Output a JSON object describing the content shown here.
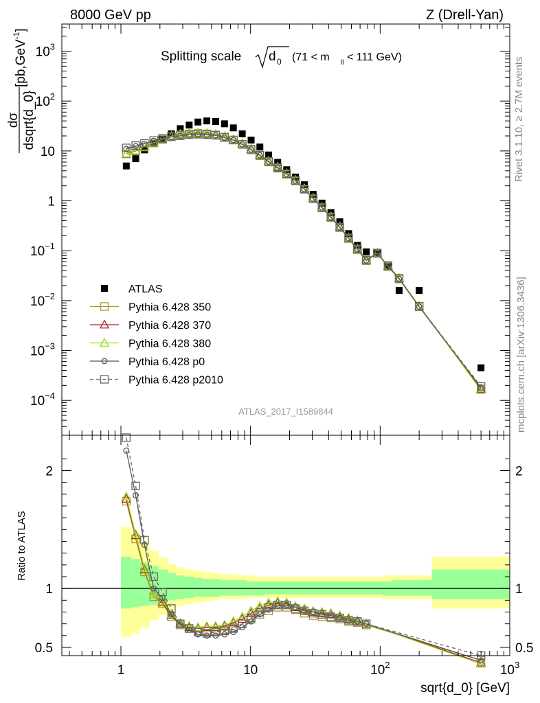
{
  "header": {
    "left": "8000 GeV pp",
    "right": "Z (Drell-Yan)"
  },
  "side_labels": {
    "rivet": "Rivet 3.1.10, ≥ 2.7M events",
    "mcplots": "mcplots.cern.ch [arXiv:1306.3436]"
  },
  "analysis_tag": "ATLAS_2017_I1589844",
  "chart_data": [
    {
      "type": "scatter",
      "panel": "main",
      "title_parts": {
        "lead": "Splitting scale",
        "symbol": "d",
        "subscript": "0",
        "range_open": "(71 < m",
        "range_sub": "ll",
        "range_close": " < 111 GeV)"
      },
      "ylabel_parts": {
        "num": "dσ",
        "den": "dsqrt{d_0}",
        "unit_open": " [pb,GeV",
        "unit_exp": "-1",
        "unit_close": "]"
      },
      "x_scale": "log",
      "y_scale": "log",
      "xlim": [
        0.35,
        1000
      ],
      "ylim": [
        2e-05,
        3500
      ],
      "x_ticks": [
        {
          "value": 1,
          "label": "1"
        },
        {
          "value": 10,
          "label": "10"
        },
        {
          "value": 100,
          "label": "10",
          "sup": "2"
        },
        {
          "value": 1000,
          "label": "10",
          "sup": "3"
        }
      ],
      "y_ticks": [
        {
          "value": 0.0001,
          "label": "10",
          "sup": "−4"
        },
        {
          "value": 0.001,
          "label": "10",
          "sup": "−3"
        },
        {
          "value": 0.01,
          "label": "10",
          "sup": "−2"
        },
        {
          "value": 0.1,
          "label": "10",
          "sup": "−1"
        },
        {
          "value": 1,
          "label": "1"
        },
        {
          "value": 10,
          "label": "10"
        },
        {
          "value": 100,
          "label": "10",
          "sup": "2"
        },
        {
          "value": 1000,
          "label": "10",
          "sup": "3"
        }
      ],
      "legend_position": "bottom-left",
      "series": [
        {
          "name": "ATLAS",
          "color": "#000000",
          "marker": "filled-square",
          "line": "none",
          "x": [
            1.1,
            1.3,
            1.52,
            1.79,
            2.09,
            2.45,
            2.87,
            3.36,
            3.93,
            4.6,
            5.38,
            6.3,
            7.37,
            8.63,
            10.1,
            11.8,
            13.8,
            16.2,
            19.0,
            22.2,
            26.0,
            30.4,
            35.6,
            41.7,
            48.8,
            57.1,
            66.8,
            78.2,
            95.0,
            115.0,
            140.0,
            200.0,
            600.0
          ],
          "y": [
            5.0,
            7.0,
            10.5,
            14.0,
            18.0,
            22.0,
            28.0,
            33.0,
            38.0,
            40.0,
            39.0,
            35.0,
            29.0,
            22.0,
            16.5,
            12.0,
            8.3,
            5.9,
            4.2,
            3.0,
            2.1,
            1.35,
            0.9,
            0.58,
            0.38,
            0.22,
            0.128,
            0.095,
            0.09,
            0.052,
            0.016,
            0.016,
            0.00045
          ]
        },
        {
          "name": "Pythia 6.428 350",
          "color": "#aa9933",
          "marker": "open-square",
          "line": "solid",
          "x": [
            1.1,
            1.3,
            1.52,
            1.79,
            2.09,
            2.45,
            2.87,
            3.36,
            3.93,
            4.6,
            5.38,
            6.3,
            7.37,
            8.63,
            10.1,
            11.8,
            13.8,
            16.2,
            19.0,
            22.2,
            26.0,
            30.4,
            35.6,
            41.7,
            48.8,
            57.1,
            66.8,
            78.2,
            95.0,
            115.0,
            140.0,
            200.0,
            600.0
          ],
          "y": [
            8.7,
            10.0,
            12.0,
            14.5,
            17.0,
            19.5,
            21.0,
            22.0,
            22.5,
            22.0,
            21.0,
            19.0,
            16.5,
            13.5,
            10.5,
            8.0,
            6.0,
            4.5,
            3.4,
            2.5,
            1.7,
            1.1,
            0.72,
            0.46,
            0.29,
            0.175,
            0.105,
            0.063,
            0.088,
            0.048,
            0.027,
            0.0075,
            0.00017
          ]
        },
        {
          "name": "Pythia 6.428 370",
          "color": "#aa2222",
          "marker": "open-triangle",
          "line": "solid",
          "x": [
            1.1,
            1.3,
            1.52,
            1.79,
            2.09,
            2.45,
            2.87,
            3.36,
            3.93,
            4.6,
            5.38,
            6.3,
            7.37,
            8.63,
            10.1,
            11.8,
            13.8,
            16.2,
            19.0,
            22.2,
            26.0,
            30.4,
            35.6,
            41.7,
            48.8,
            57.1,
            66.8,
            78.2,
            95.0,
            115.0,
            140.0,
            200.0,
            600.0
          ],
          "y": [
            8.8,
            10.1,
            12.1,
            14.6,
            17.2,
            19.8,
            21.5,
            22.5,
            23.0,
            22.5,
            21.5,
            19.5,
            17.0,
            14.0,
            10.8,
            8.3,
            6.2,
            4.7,
            3.5,
            2.6,
            1.75,
            1.13,
            0.74,
            0.48,
            0.3,
            0.18,
            0.108,
            0.065,
            0.09,
            0.049,
            0.028,
            0.0077,
            0.00017
          ]
        },
        {
          "name": "Pythia 6.428 380",
          "color": "#99dd22",
          "marker": "open-triangle",
          "line": "solid",
          "x": [
            1.1,
            1.3,
            1.52,
            1.79,
            2.09,
            2.45,
            2.87,
            3.36,
            3.93,
            4.6,
            5.38,
            6.3,
            7.37,
            8.63,
            10.1,
            11.8,
            13.8,
            16.2,
            19.0,
            22.2,
            26.0,
            30.4,
            35.6,
            41.7,
            48.8,
            57.1,
            66.8,
            78.2,
            95.0,
            115.0,
            140.0,
            200.0,
            600.0
          ],
          "y": [
            8.9,
            10.2,
            12.2,
            14.7,
            17.3,
            19.9,
            21.6,
            22.6,
            23.1,
            22.6,
            21.6,
            19.6,
            17.1,
            14.1,
            10.9,
            8.4,
            6.3,
            4.8,
            3.55,
            2.62,
            1.77,
            1.14,
            0.75,
            0.485,
            0.305,
            0.182,
            0.11,
            0.066,
            0.091,
            0.05,
            0.0285,
            0.0078,
            0.00016
          ]
        },
        {
          "name": "Pythia 6.428 p0",
          "color": "#555555",
          "marker": "open-circle",
          "line": "solid",
          "x": [
            1.1,
            1.3,
            1.52,
            1.79,
            2.09,
            2.45,
            2.87,
            3.36,
            3.93,
            4.6,
            5.38,
            6.3,
            7.37,
            8.63,
            10.1,
            11.8,
            13.8,
            16.2,
            19.0,
            22.2,
            26.0,
            30.4,
            35.6,
            41.7,
            48.8,
            57.1,
            66.8,
            78.2,
            95.0,
            115.0,
            140.0,
            200.0,
            600.0
          ],
          "y": [
            11.0,
            12.5,
            14.0,
            16.0,
            17.5,
            19.0,
            20.0,
            21.0,
            21.5,
            21.0,
            20.5,
            18.5,
            16.5,
            13.5,
            10.7,
            8.2,
            6.1,
            4.6,
            3.45,
            2.55,
            1.72,
            1.11,
            0.73,
            0.47,
            0.295,
            0.178,
            0.107,
            0.064,
            0.089,
            0.049,
            0.0275,
            0.0076,
            0.00018
          ]
        },
        {
          "name": "Pythia 6.428 p2010",
          "color": "#666666",
          "marker": "open-square",
          "line": "dashed",
          "x": [
            1.1,
            1.3,
            1.52,
            1.79,
            2.09,
            2.45,
            2.87,
            3.36,
            3.93,
            4.6,
            5.38,
            6.3,
            7.37,
            8.63,
            10.1,
            11.8,
            13.8,
            16.2,
            19.0,
            22.2,
            26.0,
            30.4,
            35.6,
            41.7,
            48.8,
            57.1,
            66.8,
            78.2,
            95.0,
            115.0,
            140.0,
            200.0,
            600.0
          ],
          "y": [
            11.5,
            12.8,
            14.2,
            16.2,
            17.8,
            19.2,
            20.2,
            21.1,
            21.6,
            21.2,
            20.6,
            18.6,
            16.6,
            13.6,
            10.8,
            8.25,
            6.15,
            4.65,
            3.48,
            2.57,
            1.73,
            1.12,
            0.735,
            0.475,
            0.298,
            0.18,
            0.108,
            0.065,
            0.09,
            0.05,
            0.028,
            0.0077,
            0.00019
          ]
        }
      ]
    },
    {
      "type": "line",
      "panel": "ratio",
      "ylabel": "Ratio to ATLAS",
      "xlabel": "sqrt{d_0} [GeV]",
      "x_scale": "log",
      "xlim": [
        0.35,
        1000
      ],
      "ylim": [
        0.43,
        2.3
      ],
      "y_ticks": [
        {
          "value": 0.5,
          "label": "0.5"
        },
        {
          "value": 1,
          "label": "1"
        },
        {
          "value": 2,
          "label": "2"
        }
      ],
      "reference_line": 1.0,
      "uncertainty_bands": {
        "edges": [
          1.0,
          1.2,
          1.4,
          1.65,
          1.95,
          2.3,
          2.65,
          3.1,
          3.65,
          4.25,
          5.0,
          5.8,
          6.85,
          8.0,
          9.3,
          10.9,
          12.8,
          15.0,
          17.5,
          20.5,
          24.0,
          28.0,
          33.0,
          38.5,
          45.0,
          52.5,
          61.5,
          72.0,
          85.0,
          105.0,
          125.0,
          160.0,
          250.0,
          1000.0
        ],
        "outer_hi": [
          1.52,
          1.47,
          1.4,
          1.32,
          1.26,
          1.21,
          1.18,
          1.16,
          1.15,
          1.14,
          1.13,
          1.12,
          1.12,
          1.11,
          1.11,
          1.1,
          1.1,
          1.1,
          1.1,
          1.1,
          1.1,
          1.1,
          1.1,
          1.1,
          1.1,
          1.1,
          1.1,
          1.1,
          1.1,
          1.11,
          1.11,
          1.11,
          1.27
        ],
        "outer_lo": [
          0.59,
          0.62,
          0.67,
          0.73,
          0.78,
          0.82,
          0.85,
          0.87,
          0.88,
          0.89,
          0.9,
          0.91,
          0.91,
          0.91,
          0.92,
          0.92,
          0.92,
          0.92,
          0.92,
          0.92,
          0.92,
          0.92,
          0.92,
          0.92,
          0.92,
          0.92,
          0.92,
          0.92,
          0.92,
          0.91,
          0.91,
          0.91,
          0.83
        ],
        "inner_hi": [
          1.27,
          1.25,
          1.22,
          1.19,
          1.16,
          1.13,
          1.11,
          1.1,
          1.09,
          1.08,
          1.08,
          1.07,
          1.07,
          1.07,
          1.06,
          1.06,
          1.06,
          1.06,
          1.06,
          1.06,
          1.06,
          1.06,
          1.06,
          1.06,
          1.06,
          1.06,
          1.06,
          1.06,
          1.06,
          1.06,
          1.07,
          1.07,
          1.16
        ],
        "inner_lo": [
          0.83,
          0.84,
          0.85,
          0.86,
          0.88,
          0.9,
          0.91,
          0.92,
          0.93,
          0.93,
          0.93,
          0.94,
          0.94,
          0.94,
          0.94,
          0.94,
          0.95,
          0.95,
          0.95,
          0.95,
          0.95,
          0.95,
          0.95,
          0.95,
          0.95,
          0.95,
          0.95,
          0.95,
          0.95,
          0.94,
          0.94,
          0.94,
          0.91
        ]
      },
      "series": [
        {
          "name": "Pythia 6.428 350",
          "x": [
            1.1,
            1.3,
            1.52,
            1.79,
            2.09,
            2.45,
            2.87,
            3.36,
            3.93,
            4.6,
            5.38,
            6.3,
            7.37,
            8.63,
            10.1,
            11.8,
            13.8,
            16.2,
            19.0,
            22.2,
            26.0,
            30.4,
            35.6,
            41.7,
            48.8,
            57.1,
            66.8,
            78.2,
            600.0
          ],
          "y": [
            1.74,
            1.42,
            1.14,
            0.93,
            0.87,
            0.76,
            0.69,
            0.66,
            0.64,
            0.64,
            0.64,
            0.65,
            0.67,
            0.7,
            0.74,
            0.78,
            0.81,
            0.84,
            0.84,
            0.82,
            0.79,
            0.77,
            0.76,
            0.75,
            0.74,
            0.72,
            0.71,
            0.69,
            0.39
          ]
        },
        {
          "name": "Pythia 6.428 370",
          "x": [
            1.1,
            1.3,
            1.52,
            1.79,
            2.09,
            2.45,
            2.87,
            3.36,
            3.93,
            4.6,
            5.38,
            6.3,
            7.37,
            8.63,
            10.1,
            11.8,
            13.8,
            16.2,
            19.0,
            22.2,
            26.0,
            30.4,
            35.6,
            41.7,
            48.8,
            57.1,
            66.8,
            78.2,
            600.0
          ],
          "y": [
            1.76,
            1.45,
            1.16,
            0.95,
            0.88,
            0.77,
            0.7,
            0.67,
            0.66,
            0.67,
            0.67,
            0.68,
            0.71,
            0.74,
            0.79,
            0.83,
            0.86,
            0.88,
            0.87,
            0.84,
            0.82,
            0.8,
            0.79,
            0.78,
            0.76,
            0.74,
            0.72,
            0.7,
            0.37
          ]
        },
        {
          "name": "Pythia 6.428 380",
          "x": [
            1.1,
            1.3,
            1.52,
            1.79,
            2.09,
            2.45,
            2.87,
            3.36,
            3.93,
            4.6,
            5.38,
            6.3,
            7.37,
            8.63,
            10.1,
            11.8,
            13.8,
            16.2,
            19.0,
            22.2,
            26.0,
            30.4,
            35.6,
            41.7,
            48.8,
            57.1,
            66.8,
            78.2,
            600.0
          ],
          "y": [
            1.78,
            1.46,
            1.17,
            0.95,
            0.89,
            0.78,
            0.71,
            0.68,
            0.67,
            0.68,
            0.68,
            0.69,
            0.72,
            0.76,
            0.81,
            0.85,
            0.88,
            0.89,
            0.88,
            0.85,
            0.83,
            0.81,
            0.8,
            0.79,
            0.77,
            0.75,
            0.73,
            0.7,
            0.36
          ]
        },
        {
          "name": "Pythia 6.428 p0",
          "x": [
            1.1,
            1.3,
            1.52,
            1.79,
            2.09,
            2.45,
            2.87,
            3.36,
            3.93,
            4.6,
            5.38,
            6.3,
            7.37,
            8.63,
            10.1,
            11.8,
            13.8,
            16.2,
            19.0,
            22.2,
            26.0,
            30.4,
            35.6,
            41.7,
            48.8,
            57.1,
            66.8,
            78.2,
            600.0
          ],
          "y": [
            2.17,
            1.79,
            1.37,
            1.0,
            0.92,
            0.78,
            0.69,
            0.65,
            0.61,
            0.6,
            0.6,
            0.61,
            0.63,
            0.67,
            0.72,
            0.78,
            0.82,
            0.85,
            0.86,
            0.84,
            0.81,
            0.8,
            0.78,
            0.77,
            0.75,
            0.73,
            0.72,
            0.7,
            0.39
          ]
        },
        {
          "name": "Pythia 6.428 p2010",
          "x": [
            1.1,
            1.3,
            1.52,
            1.79,
            2.09,
            2.45,
            2.87,
            3.36,
            3.93,
            4.6,
            5.38,
            6.3,
            7.37,
            8.63,
            10.1,
            11.8,
            13.8,
            16.2,
            19.0,
            22.2,
            26.0,
            30.4,
            35.6,
            41.7,
            48.8,
            57.1,
            66.8,
            78.2,
            600.0
          ],
          "y": [
            2.28,
            1.87,
            1.41,
            1.1,
            0.97,
            0.83,
            0.7,
            0.66,
            0.63,
            0.62,
            0.63,
            0.64,
            0.66,
            0.7,
            0.75,
            0.8,
            0.84,
            0.86,
            0.86,
            0.83,
            0.81,
            0.79,
            0.78,
            0.76,
            0.75,
            0.73,
            0.72,
            0.7,
            0.43
          ]
        }
      ]
    }
  ]
}
